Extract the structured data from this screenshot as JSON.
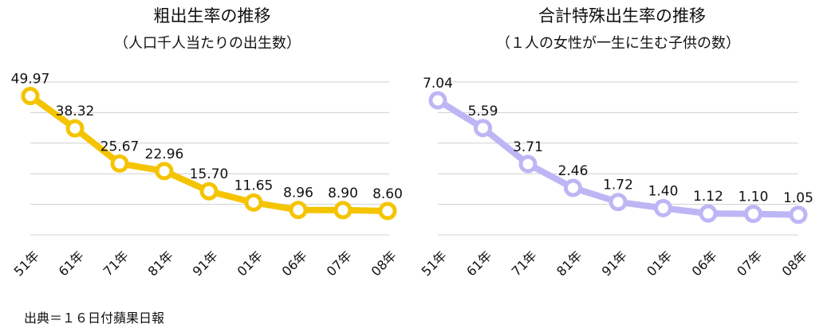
{
  "source": "出典＝１６日付蘋果日報",
  "chart_data": [
    {
      "type": "line",
      "title": "粗出生率の推移",
      "subtitle": "（人口千人当たりの出生数）",
      "categories": [
        "51年",
        "61年",
        "71年",
        "81年",
        "91年",
        "01年",
        "06年",
        "07年",
        "08年"
      ],
      "series": [
        {
          "values": [
            49.97,
            38.32,
            25.67,
            22.96,
            15.7,
            11.65,
            8.96,
            8.9,
            8.6
          ]
        }
      ],
      "data_labels": [
        "49.97",
        "38.32",
        "25.67",
        "22.96",
        "15.70",
        "11.65",
        "8.96",
        "8.90",
        "8.60"
      ],
      "ylim": [
        0,
        55
      ],
      "gridlines": [
        0,
        11,
        22,
        33,
        44,
        55
      ],
      "grid": true,
      "color": "#f5c400"
    },
    {
      "type": "line",
      "title": "合計特殊出生率の推移",
      "subtitle": "（１人の女性が一生に生む子供の数）",
      "categories": [
        "51年",
        "61年",
        "71年",
        "81年",
        "91年",
        "01年",
        "06年",
        "07年",
        "08年"
      ],
      "series": [
        {
          "values": [
            7.04,
            5.59,
            3.71,
            2.46,
            1.72,
            1.4,
            1.12,
            1.1,
            1.05
          ]
        }
      ],
      "data_labels": [
        "7.04",
        "5.59",
        "3.71",
        "2.46",
        "1.72",
        "1.40",
        "1.12",
        "1.10",
        "1.05"
      ],
      "ylim": [
        0,
        8
      ],
      "gridlines": [
        0,
        1.6,
        3.2,
        4.8,
        6.4,
        8
      ],
      "grid": true,
      "color": "#bdb6f5"
    }
  ]
}
